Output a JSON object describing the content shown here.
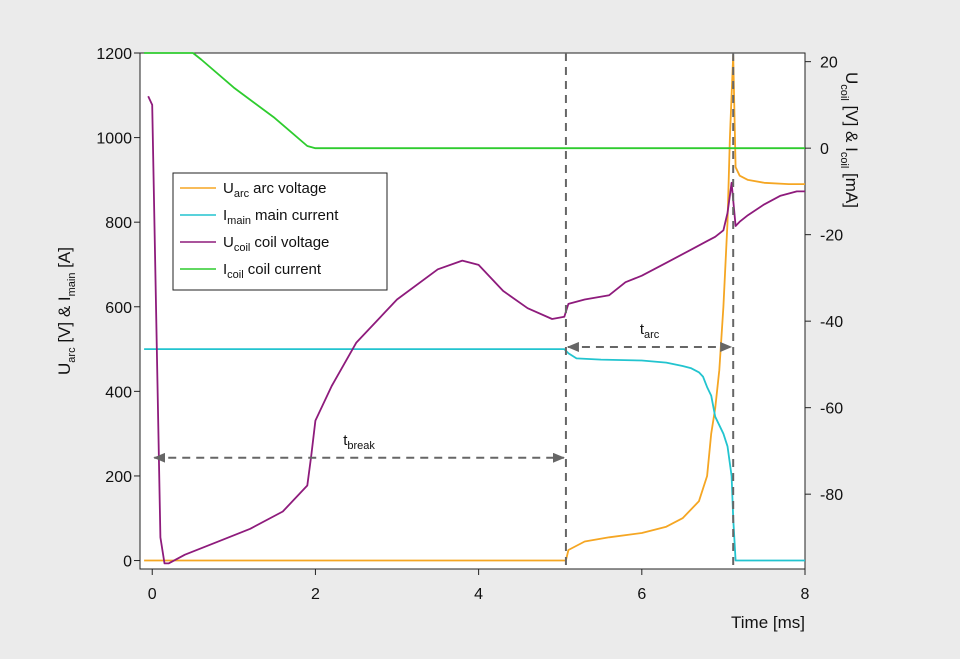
{
  "chart_data": {
    "type": "line",
    "title": "",
    "xlabel": "Time [ms]",
    "ylabel_left": {
      "base1": "U",
      "sub1": "arc",
      "mid": " [V] & I",
      "sub2": "main",
      "tail": " [A]"
    },
    "ylabel_right": {
      "base1": "U",
      "sub1": "coil",
      "mid": " [V] & I",
      "sub2": "coil",
      "tail": " [mA]"
    },
    "xlim": [
      -0.15,
      8
    ],
    "ylim_left": [
      -20,
      1200
    ],
    "ylim_right": [
      -97.3,
      22
    ],
    "x_ticks": [
      "0",
      "2",
      "4",
      "6",
      "8"
    ],
    "y_ticks_left": [
      "0",
      "200",
      "400",
      "600",
      "800",
      "1000",
      "1200"
    ],
    "y_ticks_right": [
      "-80",
      "-60",
      "-40",
      "-20",
      "0",
      "20"
    ],
    "grid": false,
    "legend": {
      "position": "upper-left",
      "items": [
        {
          "sym": "U",
          "sub": "arc",
          "desc": "arc voltage",
          "color": "#f5a623"
        },
        {
          "sym": "I",
          "sub": "main",
          "desc": "main current",
          "color": "#22c4cf"
        },
        {
          "sym": "U",
          "sub": "coil",
          "desc": "coil voltage",
          "color": "#8e1b7c"
        },
        {
          "sym": "I",
          "sub": "coil",
          "desc": "coil current",
          "color": "#2ecc2e"
        }
      ]
    },
    "series": [
      {
        "name": "U_arc arc voltage",
        "axis": "left",
        "color": "#f5a623",
        "x": [
          -0.1,
          5.07,
          5.1,
          5.3,
          5.6,
          6.0,
          6.3,
          6.5,
          6.7,
          6.8,
          6.85,
          6.9,
          6.95,
          7.0,
          7.05,
          7.08,
          7.12,
          7.15,
          7.2,
          7.3,
          7.5,
          7.8,
          8.0
        ],
        "y": [
          0,
          0,
          25,
          45,
          55,
          65,
          80,
          100,
          140,
          200,
          300,
          360,
          450,
          600,
          800,
          1000,
          1195,
          930,
          910,
          900,
          893,
          890,
          890
        ]
      },
      {
        "name": "I_main main current",
        "axis": "left",
        "color": "#22c4cf",
        "x": [
          -0.1,
          5.05,
          5.1,
          5.2,
          5.5,
          6.0,
          6.3,
          6.5,
          6.6,
          6.7,
          6.75,
          6.8,
          6.85,
          6.9,
          6.95,
          7.0,
          7.05,
          7.1,
          7.12,
          7.15,
          7.5,
          8.0
        ],
        "y": [
          500,
          500,
          490,
          478,
          475,
          473,
          468,
          460,
          455,
          445,
          435,
          410,
          390,
          340,
          320,
          300,
          270,
          200,
          100,
          0,
          0,
          0
        ]
      },
      {
        "name": "U_coil coil voltage",
        "axis": "right",
        "color": "#8e1b7c",
        "x": [
          -0.05,
          0.0,
          0.05,
          0.1,
          0.15,
          0.2,
          0.4,
          0.8,
          1.2,
          1.6,
          1.9,
          1.95,
          2.0,
          2.2,
          2.5,
          3.0,
          3.5,
          3.8,
          4.0,
          4.3,
          4.6,
          4.9,
          5.05,
          5.1,
          5.3,
          5.6,
          5.8,
          6.0,
          6.3,
          6.6,
          6.8,
          6.9,
          7.0,
          7.05,
          7.1,
          7.15,
          7.2,
          7.3,
          7.5,
          7.7,
          7.9,
          8.0
        ],
        "y": [
          12,
          10,
          -40,
          -90,
          -96,
          -96,
          -94,
          -91,
          -88,
          -84,
          -78,
          -71,
          -63,
          -55,
          -45,
          -35,
          -28,
          -26,
          -27,
          -33,
          -37,
          -39.5,
          -39,
          -36,
          -35,
          -34,
          -31,
          -29.5,
          -26.5,
          -23.5,
          -21.5,
          -20.5,
          -19,
          -15,
          -8,
          -18,
          -17,
          -15.5,
          -13,
          -11,
          -10,
          -10
        ]
      },
      {
        "name": "I_coil coil current",
        "axis": "right",
        "color": "#2ecc2e",
        "x": [
          -0.1,
          0.5,
          0.6,
          1.0,
          1.5,
          1.9,
          2.0,
          5.0,
          6.5,
          6.8,
          7.0,
          7.1,
          7.2,
          8.0
        ],
        "y": [
          22,
          22,
          20.5,
          14,
          7,
          0.5,
          0,
          0,
          0,
          0,
          0,
          0,
          0,
          0
        ]
      }
    ],
    "annotations": [
      {
        "base": "t",
        "sub": "break",
        "x_from": 0.0,
        "x_to": 5.07,
        "y": 243
      },
      {
        "base": "t",
        "sub": "arc",
        "x_from": 5.07,
        "x_to": 7.12,
        "y": 505
      }
    ],
    "vlines_x": [
      5.07,
      7.12
    ]
  }
}
